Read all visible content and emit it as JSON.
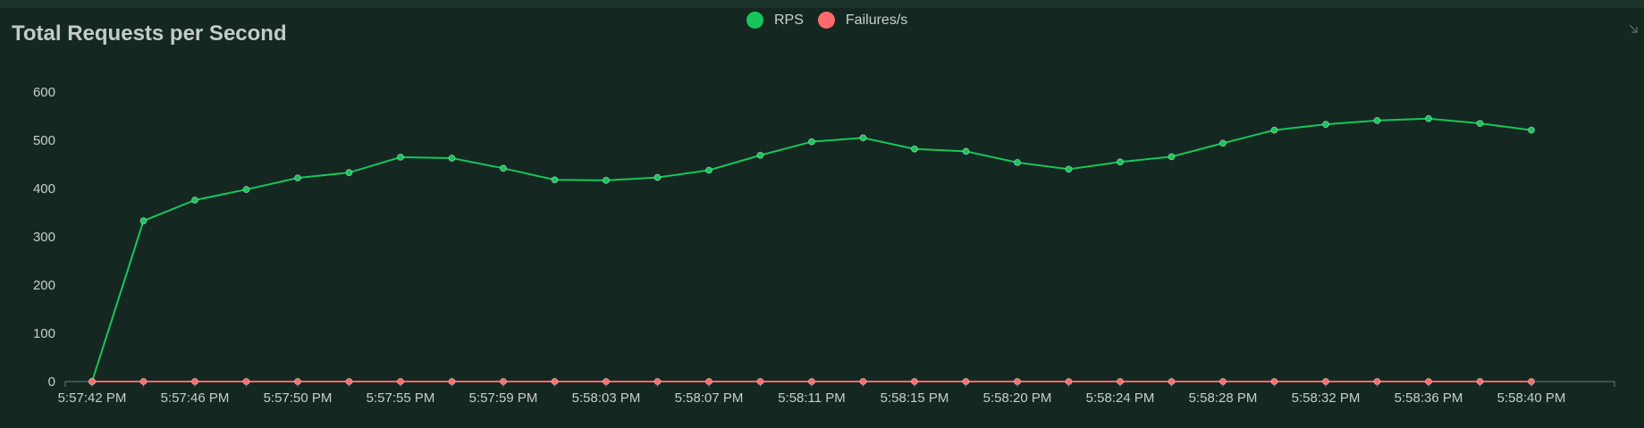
{
  "title": "Total Requests per Second",
  "legend": [
    {
      "name": "RPS",
      "color": "#17c55b"
    },
    {
      "name": "Failures/s",
      "color": "#ff6b6b"
    }
  ],
  "chart_data": {
    "type": "line",
    "title": "Total Requests per Second",
    "xlabel": "",
    "ylabel": "",
    "ylim": [
      0,
      600
    ],
    "yticks": [
      0,
      100,
      200,
      300,
      400,
      500,
      600
    ],
    "xtick_labels": [
      "5:57:42 PM",
      "5:57:46 PM",
      "5:57:50 PM",
      "5:57:55 PM",
      "5:57:59 PM",
      "5:58:03 PM",
      "5:58:07 PM",
      "5:58:11 PM",
      "5:58:15 PM",
      "5:58:20 PM",
      "5:58:24 PM",
      "5:58:28 PM",
      "5:58:32 PM",
      "5:58:36 PM",
      "5:58:40 PM"
    ],
    "grid": false,
    "legend_position": "top-center",
    "series": [
      {
        "name": "RPS",
        "color": "#17c55b",
        "values": [
          0,
          333,
          376,
          398,
          422,
          433,
          465,
          463,
          442,
          418,
          417,
          423,
          438,
          469,
          497,
          505,
          482,
          477,
          454,
          440,
          455,
          466,
          494,
          521,
          533,
          541,
          545,
          535,
          521
        ]
      },
      {
        "name": "Failures/s",
        "color": "#ff6b6b",
        "values": [
          0,
          0,
          0,
          0,
          0,
          0,
          0,
          0,
          0,
          0,
          0,
          0,
          0,
          0,
          0,
          0,
          0,
          0,
          0,
          0,
          0,
          0,
          0,
          0,
          0,
          0,
          0,
          0,
          0
        ]
      }
    ]
  }
}
